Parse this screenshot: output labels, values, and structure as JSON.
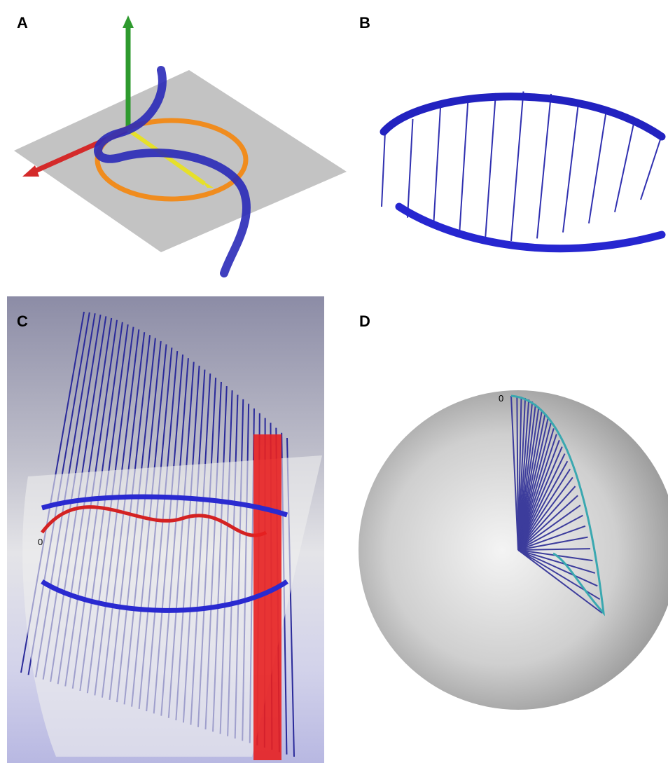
{
  "panels": [
    {
      "label": "A"
    },
    {
      "label": "B"
    },
    {
      "label": "C",
      "annotation": "0"
    },
    {
      "label": "D",
      "annotation": "0"
    }
  ]
}
